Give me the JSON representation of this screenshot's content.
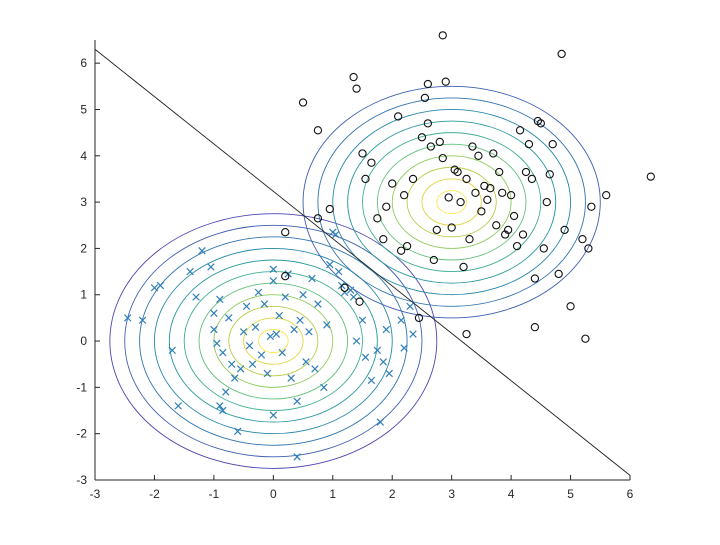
{
  "chart_data": {
    "type": "scatter",
    "title": "",
    "xlabel": "",
    "ylabel": "",
    "xlim": [
      -3,
      6
    ],
    "ylim": [
      -3,
      6.5
    ],
    "grid": false,
    "xticks": [
      -3,
      -2,
      -1,
      0,
      1,
      2,
      3,
      4,
      5,
      6
    ],
    "yticks": [
      -3,
      -2,
      -1,
      0,
      1,
      2,
      3,
      4,
      5,
      6
    ],
    "series": [
      {
        "marker": "x",
        "color": "#2f7fb7",
        "points": [
          [
            -2.45,
            0.5
          ],
          [
            -2.2,
            0.45
          ],
          [
            -2.0,
            1.15
          ],
          [
            -1.9,
            1.2
          ],
          [
            -1.7,
            -0.2
          ],
          [
            -1.6,
            -1.4
          ],
          [
            -1.4,
            1.5
          ],
          [
            -1.3,
            0.95
          ],
          [
            -1.2,
            1.95
          ],
          [
            -1.05,
            1.6
          ],
          [
            -1.0,
            0.6
          ],
          [
            -1.0,
            0.25
          ],
          [
            -0.95,
            -0.05
          ],
          [
            -0.9,
            0.9
          ],
          [
            -0.85,
            -0.25
          ],
          [
            -0.9,
            -1.4
          ],
          [
            -0.85,
            -1.5
          ],
          [
            -0.8,
            -1.1
          ],
          [
            -0.75,
            0.5
          ],
          [
            -0.7,
            -0.5
          ],
          [
            -0.65,
            -0.8
          ],
          [
            -0.6,
            -1.95
          ],
          [
            -0.55,
            -0.6
          ],
          [
            -0.5,
            0.2
          ],
          [
            -0.45,
            0.75
          ],
          [
            -0.4,
            -0.1
          ],
          [
            -0.35,
            -0.5
          ],
          [
            -0.3,
            0.3
          ],
          [
            -0.25,
            1.05
          ],
          [
            -0.2,
            -0.3
          ],
          [
            -0.15,
            0.8
          ],
          [
            -0.1,
            -0.7
          ],
          [
            -0.05,
            0.1
          ],
          [
            0.0,
            1.55
          ],
          [
            0.0,
            1.3
          ],
          [
            0.0,
            -1.6
          ],
          [
            0.05,
            0.15
          ],
          [
            0.1,
            0.55
          ],
          [
            0.15,
            -0.25
          ],
          [
            0.2,
            0.95
          ],
          [
            0.25,
            1.45
          ],
          [
            0.3,
            -0.8
          ],
          [
            0.35,
            0.25
          ],
          [
            0.4,
            -1.3
          ],
          [
            0.4,
            -2.5
          ],
          [
            0.45,
            0.45
          ],
          [
            0.5,
            1.0
          ],
          [
            0.55,
            -0.45
          ],
          [
            0.6,
            0.2
          ],
          [
            0.65,
            1.35
          ],
          [
            0.7,
            -0.6
          ],
          [
            0.75,
            0.8
          ],
          [
            0.85,
            -1.0
          ],
          [
            0.9,
            0.35
          ],
          [
            0.95,
            1.65
          ],
          [
            1.0,
            2.35
          ],
          [
            1.05,
            2.3
          ],
          [
            1.1,
            1.5
          ],
          [
            1.15,
            1.2
          ],
          [
            1.2,
            1.05
          ],
          [
            1.3,
            1.1
          ],
          [
            1.35,
            0.95
          ],
          [
            1.4,
            0.0
          ],
          [
            1.5,
            0.45
          ],
          [
            1.55,
            -0.35
          ],
          [
            1.65,
            -0.85
          ],
          [
            1.75,
            -0.2
          ],
          [
            1.8,
            -1.75
          ],
          [
            1.85,
            -0.45
          ],
          [
            1.9,
            0.25
          ],
          [
            1.95,
            -0.7
          ],
          [
            2.15,
            0.45
          ],
          [
            2.2,
            -0.15
          ],
          [
            2.3,
            0.75
          ],
          [
            2.35,
            0.15
          ]
        ]
      },
      {
        "marker": "o",
        "color": "#111111",
        "points": [
          [
            0.2,
            2.35
          ],
          [
            0.2,
            1.4
          ],
          [
            0.5,
            5.15
          ],
          [
            0.75,
            4.55
          ],
          [
            0.75,
            2.65
          ],
          [
            0.95,
            2.85
          ],
          [
            1.2,
            1.15
          ],
          [
            1.35,
            5.7
          ],
          [
            1.4,
            5.45
          ],
          [
            1.45,
            0.85
          ],
          [
            1.5,
            4.05
          ],
          [
            1.55,
            3.5
          ],
          [
            1.65,
            3.85
          ],
          [
            1.75,
            2.65
          ],
          [
            1.85,
            2.2
          ],
          [
            1.9,
            2.9
          ],
          [
            2.0,
            3.4
          ],
          [
            2.1,
            4.85
          ],
          [
            2.15,
            1.95
          ],
          [
            2.2,
            3.15
          ],
          [
            2.25,
            2.05
          ],
          [
            2.35,
            3.5
          ],
          [
            2.45,
            0.5
          ],
          [
            2.5,
            4.4
          ],
          [
            2.55,
            5.25
          ],
          [
            2.6,
            5.55
          ],
          [
            2.6,
            4.7
          ],
          [
            2.65,
            4.2
          ],
          [
            2.7,
            1.75
          ],
          [
            2.75,
            2.4
          ],
          [
            2.8,
            4.3
          ],
          [
            2.85,
            6.6
          ],
          [
            2.85,
            3.95
          ],
          [
            2.9,
            5.6
          ],
          [
            2.95,
            3.1
          ],
          [
            3.0,
            2.45
          ],
          [
            3.05,
            3.7
          ],
          [
            3.1,
            3.65
          ],
          [
            3.15,
            3.0
          ],
          [
            3.2,
            1.6
          ],
          [
            3.25,
            0.15
          ],
          [
            3.25,
            3.5
          ],
          [
            3.3,
            2.2
          ],
          [
            3.35,
            4.2
          ],
          [
            3.4,
            3.2
          ],
          [
            3.45,
            4.0
          ],
          [
            3.5,
            2.8
          ],
          [
            3.55,
            3.35
          ],
          [
            3.6,
            3.05
          ],
          [
            3.65,
            3.3
          ],
          [
            3.7,
            4.05
          ],
          [
            3.75,
            2.5
          ],
          [
            3.8,
            3.65
          ],
          [
            3.85,
            3.2
          ],
          [
            3.9,
            2.3
          ],
          [
            3.95,
            2.4
          ],
          [
            4.0,
            3.15
          ],
          [
            4.05,
            2.7
          ],
          [
            4.1,
            2.05
          ],
          [
            4.15,
            4.55
          ],
          [
            4.2,
            2.3
          ],
          [
            4.25,
            3.65
          ],
          [
            4.3,
            4.25
          ],
          [
            4.35,
            3.5
          ],
          [
            4.4,
            1.35
          ],
          [
            4.4,
            0.3
          ],
          [
            4.45,
            4.75
          ],
          [
            4.5,
            4.7
          ],
          [
            4.55,
            2.0
          ],
          [
            4.6,
            3.0
          ],
          [
            4.65,
            3.6
          ],
          [
            4.7,
            4.25
          ],
          [
            4.8,
            1.45
          ],
          [
            4.85,
            6.2
          ],
          [
            4.9,
            2.4
          ],
          [
            5.0,
            0.75
          ],
          [
            5.2,
            2.2
          ],
          [
            5.25,
            0.05
          ],
          [
            5.3,
            2.0
          ],
          [
            5.35,
            2.9
          ],
          [
            5.6,
            3.15
          ],
          [
            6.35,
            3.55
          ]
        ]
      }
    ],
    "contours": [
      {
        "center": [
          0.0,
          0.0
        ],
        "count": 11
      },
      {
        "center": [
          3.0,
          3.0
        ],
        "count": 10
      }
    ],
    "contour_colors": [
      "#fbe74e",
      "#e0d341",
      "#b9cc4b",
      "#8ecb5c",
      "#63c17a",
      "#40ae94",
      "#2b9aa1",
      "#2687a8",
      "#3174ae",
      "#3d5fb2",
      "#4c45b1"
    ],
    "decision_boundary": {
      "x": [
        -3.0,
        6.0
      ],
      "y": [
        6.3,
        -2.9
      ]
    }
  }
}
